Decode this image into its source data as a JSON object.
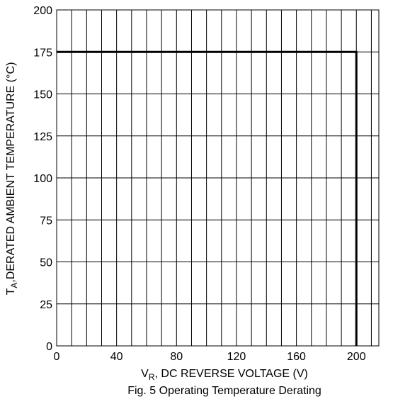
{
  "chart_data": {
    "type": "line",
    "title": "Fig. 5 Operating Temperature Derating",
    "xlabel": {
      "main": "V",
      "sub": "R",
      "rest": ", DC REVERSE VOLTAGE (V)"
    },
    "ylabel": {
      "main": "T",
      "sub": "A",
      "rest": ",DERATED AMBIENT TEMPERATURE (°C)"
    },
    "xlim": [
      0,
      215
    ],
    "ylim": [
      0,
      200
    ],
    "x_ticks": [
      0,
      40,
      80,
      120,
      160,
      200
    ],
    "y_ticks": [
      0,
      25,
      50,
      75,
      100,
      125,
      150,
      175,
      200
    ],
    "x_grid_step": 10,
    "y_grid_step": 25,
    "grid": true,
    "series": [
      {
        "values": [
          [
            0,
            175
          ],
          [
            200,
            175
          ],
          [
            200,
            0
          ]
        ]
      }
    ]
  }
}
